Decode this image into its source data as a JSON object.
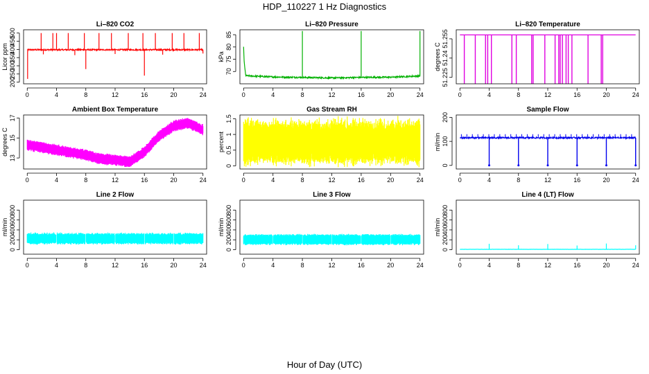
{
  "figure": {
    "title": "HDP_110227  1 Hz Diagnostics",
    "xlabel": "Hour of Day (UTC)"
  },
  "chart_data": [
    {
      "type": "line",
      "title": "Li–820 CO2",
      "ylabel": "Licor ppm",
      "color": "#ff0000",
      "xlim": [
        -0.5,
        24.5
      ],
      "ylim": [
        190,
        520
      ],
      "xticks": [
        0,
        4,
        8,
        12,
        16,
        20,
        24
      ],
      "yticks": [
        200,
        250,
        300,
        350,
        400,
        450,
        500
      ],
      "baseline": 398,
      "noise": 4,
      "spikes": [
        [
          1.9,
          500
        ],
        [
          3.5,
          500
        ],
        [
          4.0,
          500
        ],
        [
          5.6,
          500
        ],
        [
          7.8,
          500
        ],
        [
          9.8,
          500
        ],
        [
          11.5,
          500
        ],
        [
          13.8,
          500
        ],
        [
          15.8,
          500
        ],
        [
          17.5,
          500
        ],
        [
          19.8,
          500
        ],
        [
          21.4,
          500
        ],
        [
          23.5,
          500
        ],
        [
          0.05,
          220
        ],
        [
          8.0,
          280
        ],
        [
          16.0,
          240
        ],
        [
          2.2,
          370
        ],
        [
          6.5,
          365
        ],
        [
          12.0,
          372
        ],
        [
          18.5,
          368
        ],
        [
          24.0,
          375
        ]
      ]
    },
    {
      "type": "line",
      "title": "Li–820 Pressure",
      "ylabel": "kPa",
      "color": "#00b000",
      "xlim": [
        -0.5,
        24.5
      ],
      "ylim": [
        65,
        87
      ],
      "xticks": [
        0,
        4,
        8,
        12,
        16,
        20,
        24
      ],
      "yticks": [
        70,
        75,
        80,
        85
      ],
      "series": [
        [
          0,
          80
        ],
        [
          0.1,
          73
        ],
        [
          0.3,
          68.3
        ],
        [
          4,
          67.8
        ],
        [
          8,
          67.6
        ],
        [
          12,
          67.4
        ],
        [
          16,
          67.6
        ],
        [
          20,
          67.7
        ],
        [
          24,
          68.2
        ]
      ],
      "noise": 0.3,
      "spikes": [
        [
          8.0,
          86.5
        ],
        [
          16.0,
          86.5
        ],
        [
          24.0,
          86.5
        ]
      ]
    },
    {
      "type": "line",
      "title": "Li–820 Temperature",
      "ylabel": "degrees C",
      "color": "#e000e0",
      "xlim": [
        -0.5,
        24.5
      ],
      "ylim": [
        51.22,
        51.262
      ],
      "xticks": [
        0,
        4,
        8,
        12,
        16,
        20,
        24
      ],
      "yticks": [
        51.225,
        51.24,
        51.255
      ],
      "baseline": 51.258,
      "drops": [
        0.6,
        2.1,
        3.5,
        3.8,
        4.3,
        7.1,
        7.7,
        9.8,
        10.0,
        11.6,
        13.0,
        13.5,
        13.7,
        14.0,
        14.5,
        14.8,
        15.3,
        17.5,
        19.3,
        19.5
      ]
    },
    {
      "type": "band",
      "title": "Ambient Box Temperature",
      "ylabel": "degrees C",
      "color": "#ff00ff",
      "xlim": [
        -0.5,
        24.5
      ],
      "ylim": [
        11.9,
        17.3
      ],
      "xticks": [
        0,
        4,
        8,
        12,
        16,
        20,
        24
      ],
      "yticks": [
        13,
        15,
        17
      ],
      "center": [
        [
          0,
          14.3
        ],
        [
          4,
          13.8
        ],
        [
          8,
          13.3
        ],
        [
          10,
          12.9
        ],
        [
          12,
          12.8
        ],
        [
          14,
          12.6
        ],
        [
          16,
          13.6
        ],
        [
          18,
          15.2
        ],
        [
          20,
          16.2
        ],
        [
          22,
          16.5
        ],
        [
          24,
          15.8
        ]
      ],
      "halfwidth": 0.45
    },
    {
      "type": "band",
      "title": "Gas Stream RH",
      "ylabel": "percent",
      "color": "#ffff00",
      "xlim": [
        -0.5,
        24.5
      ],
      "ylim": [
        -0.1,
        1.62
      ],
      "xticks": [
        0,
        4,
        8,
        12,
        16,
        20,
        24
      ],
      "yticks": [
        0.0,
        0.5,
        1.0,
        1.5
      ],
      "center": [
        [
          0,
          0.75
        ],
        [
          24,
          0.75
        ]
      ],
      "halfwidth": 0.55,
      "jitter": 0.12
    },
    {
      "type": "line",
      "title": "Sample Flow",
      "ylabel": "ml/min",
      "color": "#0000ee",
      "xlim": [
        -0.5,
        24.5
      ],
      "ylim": [
        -15,
        210
      ],
      "xticks": [
        0,
        4,
        8,
        12,
        16,
        20,
        24
      ],
      "yticks": [
        0,
        100,
        200
      ],
      "baseline": 115,
      "noise": 3,
      "ticks_up": 130,
      "drops": [
        4.0,
        8.0,
        12.0,
        16.0,
        20.0,
        24.0
      ],
      "drop_to": 0
    },
    {
      "type": "band",
      "title": "Line 2 Flow",
      "ylabel": "ml/min",
      "color": "#00ffff",
      "xlim": [
        -0.5,
        24.5
      ],
      "ylim": [
        -90,
        1000
      ],
      "xticks": [
        0,
        4,
        8,
        12,
        16,
        20,
        24
      ],
      "yticks": [
        0,
        200,
        400,
        600,
        800
      ],
      "center": [
        [
          0,
          225
        ],
        [
          24,
          225
        ]
      ],
      "halfwidth": 95,
      "gaps": [
        4,
        8,
        12,
        16,
        20
      ]
    },
    {
      "type": "band",
      "title": "Line 3 Flow",
      "ylabel": "ml/min",
      "color": "#00ffff",
      "xlim": [
        -0.5,
        24.5
      ],
      "ylim": [
        -90,
        1000
      ],
      "xticks": [
        0,
        4,
        8,
        12,
        16,
        20,
        24
      ],
      "yticks": [
        0,
        200,
        400,
        600,
        800
      ],
      "center": [
        [
          0,
          205
        ],
        [
          24,
          205
        ]
      ],
      "halfwidth": 90,
      "gaps": [
        4,
        8,
        12,
        16,
        20
      ]
    },
    {
      "type": "line",
      "title": "Line 4 (LT) Flow",
      "ylabel": "ml/min",
      "color": "#00ffff",
      "xlim": [
        -0.5,
        24.5
      ],
      "ylim": [
        -90,
        1000
      ],
      "xticks": [
        0,
        4,
        8,
        12,
        16,
        20,
        24
      ],
      "yticks": [
        0,
        200,
        400,
        600,
        800
      ],
      "baseline": 8,
      "noise": 2,
      "spikes": [
        [
          4,
          120
        ],
        [
          8,
          90
        ],
        [
          12,
          115
        ],
        [
          16,
          85
        ],
        [
          20,
          125
        ],
        [
          24,
          90
        ]
      ]
    }
  ]
}
